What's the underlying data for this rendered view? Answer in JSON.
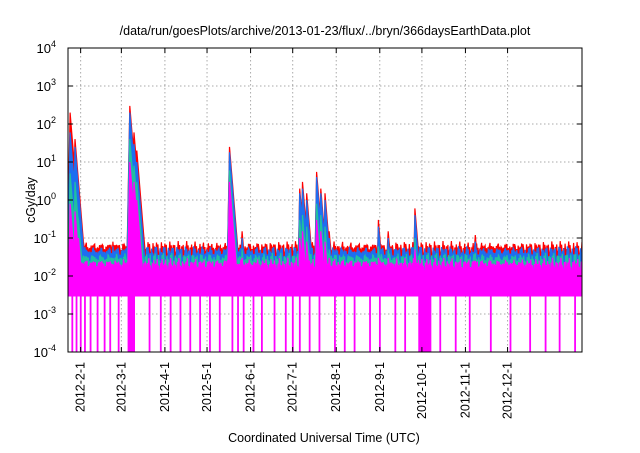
{
  "chart_data": {
    "type": "area",
    "title": "/data/run/goesPlots/archive/2013-01-23/flux/../bryn/366daysEarthData.plot",
    "xlabel": "Coordinated Universal Time (UTC)",
    "ylabel": "cGy/day",
    "yscale": "log",
    "ylim": [
      0.0001,
      10000
    ],
    "xlim_days": [
      0,
      366
    ],
    "grid": true,
    "y_ticks": [
      {
        "base": "10",
        "exp": "-4"
      },
      {
        "base": "10",
        "exp": "-3"
      },
      {
        "base": "10",
        "exp": "-2"
      },
      {
        "base": "10",
        "exp": "-1"
      },
      {
        "base": "10",
        "exp": "0"
      },
      {
        "base": "10",
        "exp": "1"
      },
      {
        "base": "10",
        "exp": "2"
      },
      {
        "base": "10",
        "exp": "3"
      },
      {
        "base": "10",
        "exp": "4"
      }
    ],
    "x_ticks": [
      {
        "label": "2012-2-1",
        "day": 9
      },
      {
        "label": "2012-3-1",
        "day": 38
      },
      {
        "label": "2012-4-1",
        "day": 69
      },
      {
        "label": "2012-5-1",
        "day": 99
      },
      {
        "label": "2012-6-1",
        "day": 130
      },
      {
        "label": "2012-7-1",
        "day": 160
      },
      {
        "label": "2012-8-1",
        "day": 191
      },
      {
        "label": "2012-9-1",
        "day": 222
      },
      {
        "label": "2012-10-1",
        "day": 252
      },
      {
        "label": "2012-11-1",
        "day": 283
      },
      {
        "label": "2012-12-1",
        "day": 313
      }
    ],
    "floor_value": 0.003,
    "series": [
      {
        "name": "series-red",
        "color": "#ff0000",
        "baseline": 0.05
      },
      {
        "name": "series-blue",
        "color": "#1e6ef0",
        "baseline": 0.038
      },
      {
        "name": "series-green",
        "color": "#20c0a0",
        "baseline": 0.025
      },
      {
        "name": "series-magenta",
        "color": "#ff00ff",
        "baseline": 0.018
      }
    ],
    "peaks_columns": [
      "day",
      "red",
      "blue",
      "green",
      "magenta"
    ],
    "peaks": [
      [
        1.5,
        200,
        60,
        5,
        0.8
      ],
      [
        5,
        40,
        25,
        3,
        0.5
      ],
      [
        7.5,
        1.5,
        1.0,
        0.3,
        0.1
      ],
      [
        32,
        0.08,
        0.06,
        0.03,
        0.02
      ],
      [
        44,
        300,
        200,
        40,
        10
      ],
      [
        47,
        60,
        30,
        8,
        3
      ],
      [
        49,
        20,
        10,
        3,
        1
      ],
      [
        51,
        1.2,
        0.7,
        0.2,
        0.08
      ],
      [
        115,
        25,
        18,
        6,
        3
      ],
      [
        124,
        0.15,
        0.1,
        0.05,
        0.03
      ],
      [
        165,
        2,
        1.5,
        0.3,
        0.1
      ],
      [
        167,
        3,
        2,
        0.4,
        0.15
      ],
      [
        170,
        1.5,
        1,
        0.2,
        0.08
      ],
      [
        177,
        5.5,
        4,
        0.8,
        0.3
      ],
      [
        180,
        2,
        1.5,
        0.4,
        0.15
      ],
      [
        183,
        1.5,
        1,
        0.2,
        0.08
      ],
      [
        186,
        0.15,
        0.1,
        0.05,
        0.03
      ],
      [
        221,
        0.3,
        0.2,
        0.06,
        0.03
      ],
      [
        228,
        0.15,
        0.1,
        0.05,
        0.03
      ],
      [
        247,
        0.6,
        0.4,
        0.1,
        0.05
      ],
      [
        290,
        0.12,
        0.08,
        0.04,
        0.025
      ]
    ],
    "dropout_days": [
      3,
      6,
      9,
      12,
      16,
      21,
      26,
      30,
      36,
      43,
      44,
      45,
      46,
      47,
      58,
      66,
      73,
      80,
      87,
      94,
      101,
      108,
      117,
      121,
      125,
      132,
      138,
      147,
      155,
      160,
      165,
      172,
      179,
      190,
      197,
      204,
      215,
      222,
      233,
      240,
      250,
      251,
      252,
      253,
      254,
      255,
      256,
      257,
      258,
      265,
      276,
      286,
      301,
      315,
      329,
      340,
      350,
      361
    ]
  }
}
